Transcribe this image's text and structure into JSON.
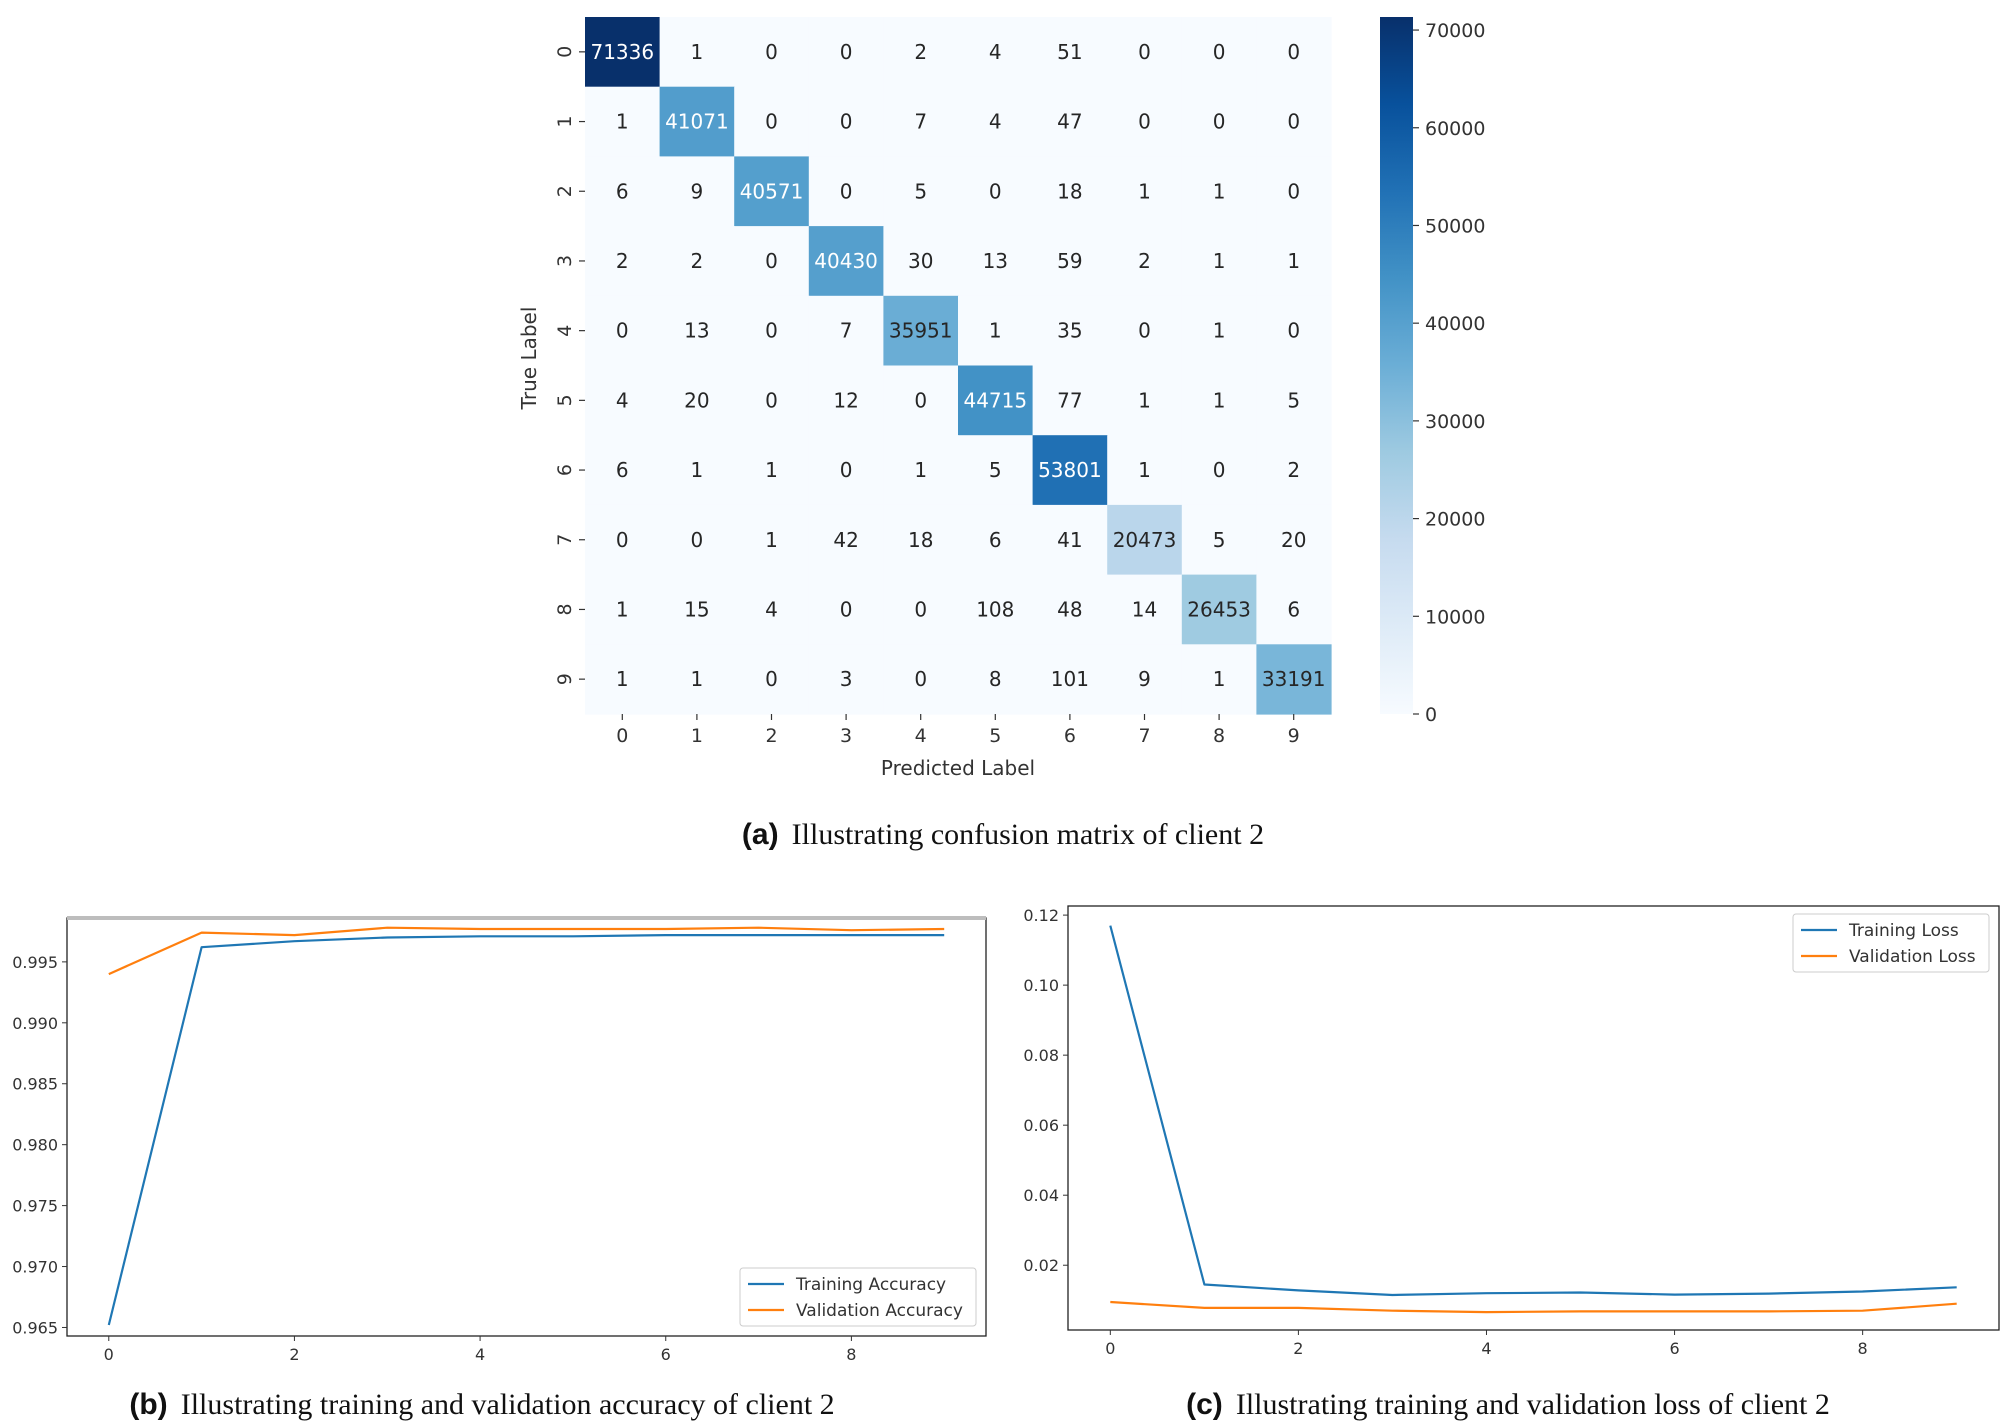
{
  "chart_data": [
    {
      "type": "heatmap",
      "title": "",
      "caption_label": "(a)",
      "caption_text": "Illustrating confusion matrix of client 2",
      "xlabel": "Predicted Label",
      "ylabel": "True Label",
      "x_ticks": [
        "0",
        "1",
        "2",
        "3",
        "4",
        "5",
        "6",
        "7",
        "8",
        "9"
      ],
      "y_ticks": [
        "0",
        "1",
        "2",
        "3",
        "4",
        "5",
        "6",
        "7",
        "8",
        "9"
      ],
      "matrix": [
        [
          71336,
          1,
          0,
          0,
          2,
          4,
          51,
          0,
          0,
          0
        ],
        [
          1,
          41071,
          0,
          0,
          7,
          4,
          47,
          0,
          0,
          0
        ],
        [
          6,
          9,
          40571,
          0,
          5,
          0,
          18,
          1,
          1,
          0
        ],
        [
          2,
          2,
          0,
          40430,
          30,
          13,
          59,
          2,
          1,
          1
        ],
        [
          0,
          13,
          0,
          7,
          35951,
          1,
          35,
          0,
          1,
          0
        ],
        [
          4,
          20,
          0,
          12,
          0,
          44715,
          77,
          1,
          1,
          5
        ],
        [
          6,
          1,
          1,
          0,
          1,
          5,
          53801,
          1,
          0,
          2
        ],
        [
          0,
          0,
          1,
          42,
          18,
          6,
          41,
          20473,
          5,
          20
        ],
        [
          1,
          15,
          4,
          0,
          0,
          108,
          48,
          14,
          26453,
          6
        ],
        [
          1,
          1,
          0,
          3,
          0,
          8,
          101,
          9,
          1,
          33191
        ]
      ],
      "colorbar": {
        "min": 0,
        "max": 71336,
        "ticks": [
          "0",
          "10000",
          "20000",
          "30000",
          "40000",
          "50000",
          "60000",
          "70000"
        ]
      },
      "colormap": "Blues"
    },
    {
      "type": "line",
      "caption_label": "(b)",
      "caption_text": "Illustrating training and validation accuracy of client 2",
      "x": [
        0,
        1,
        2,
        3,
        4,
        5,
        6,
        7,
        8,
        9
      ],
      "x_ticks": [
        "0",
        "2",
        "4",
        "6",
        "8"
      ],
      "y_ticks": [
        "0.965",
        "0.970",
        "0.975",
        "0.980",
        "0.985",
        "0.990",
        "0.995"
      ],
      "ylim": [
        0.9643,
        0.9986
      ],
      "xlim": [
        -0.45,
        9.45
      ],
      "legend_position": "lower-right",
      "series": [
        {
          "name": "Training Accuracy",
          "color": "#1f77b4",
          "values": [
            0.9652,
            0.9962,
            0.9967,
            0.997,
            0.9971,
            0.9971,
            0.9972,
            0.9972,
            0.9972,
            0.9972
          ]
        },
        {
          "name": "Validation Accuracy",
          "color": "#ff7f0e",
          "values": [
            0.994,
            0.9974,
            0.9972,
            0.9978,
            0.9977,
            0.9977,
            0.9977,
            0.9978,
            0.9976,
            0.9977
          ]
        }
      ]
    },
    {
      "type": "line",
      "caption_label": "(c)",
      "caption_text": "Illustrating training and validation loss of client 2",
      "x": [
        0,
        1,
        2,
        3,
        4,
        5,
        6,
        7,
        8,
        9
      ],
      "x_ticks": [
        "0",
        "2",
        "4",
        "6",
        "8"
      ],
      "y_ticks": [
        "0.02",
        "0.04",
        "0.06",
        "0.08",
        "0.10",
        "0.12"
      ],
      "ylim": [
        0.0015,
        0.1226
      ],
      "xlim": [
        -0.45,
        9.45
      ],
      "legend_position": "upper-right",
      "series": [
        {
          "name": "Training Loss",
          "color": "#1f77b4",
          "values": [
            0.117,
            0.0145,
            0.0128,
            0.0115,
            0.012,
            0.0122,
            0.0116,
            0.0119,
            0.0125,
            0.0137
          ]
        },
        {
          "name": "Validation Loss",
          "color": "#ff7f0e",
          "values": [
            0.0095,
            0.0078,
            0.0078,
            0.007,
            0.0066,
            0.0068,
            0.0068,
            0.0068,
            0.007,
            0.009
          ]
        }
      ]
    }
  ]
}
